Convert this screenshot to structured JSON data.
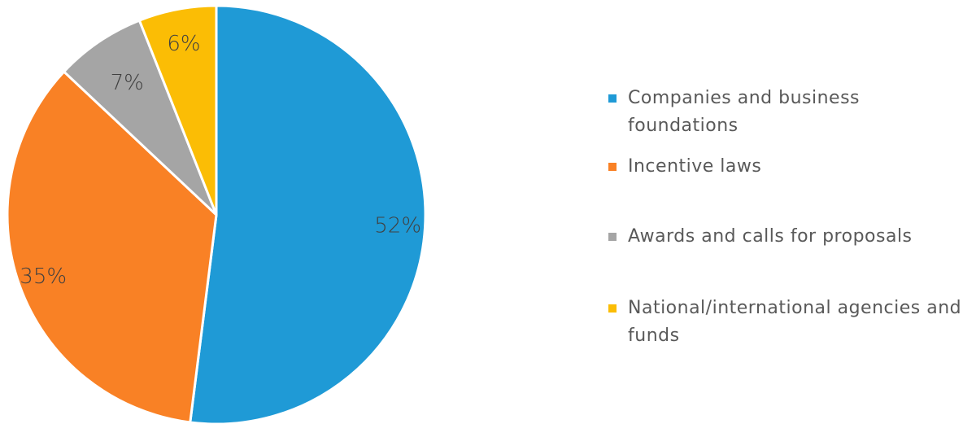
{
  "chart_data": {
    "type": "pie",
    "title": "",
    "slices": [
      {
        "label": "Companies and business foundations",
        "value": 52,
        "display": "52%",
        "color": "#1f9ad6"
      },
      {
        "label": "Incentive laws",
        "value": 35,
        "display": "35%",
        "color": "#f98125"
      },
      {
        "label": "Awards and calls for proposals",
        "value": 7,
        "display": "7%",
        "color": "#a5a5a5"
      },
      {
        "label": "National/international agencies and funds",
        "value": 6,
        "display": "6%",
        "color": "#fbbd05"
      }
    ],
    "legend_position": "right"
  }
}
